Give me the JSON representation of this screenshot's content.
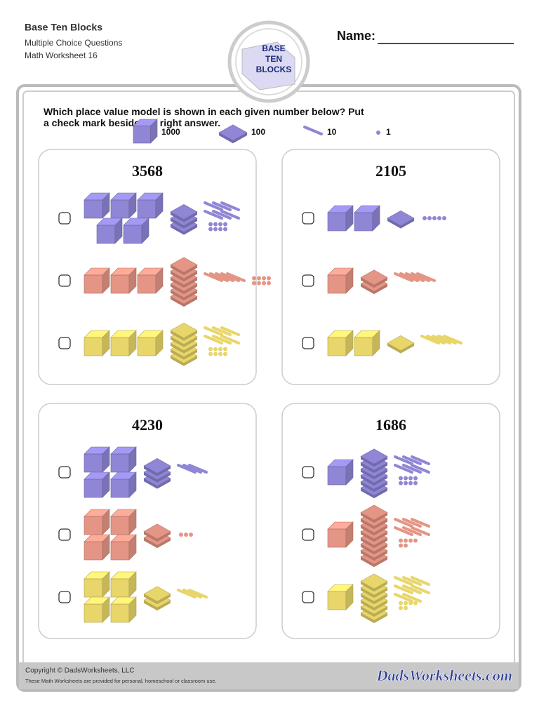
{
  "header": {
    "title": "Base Ten Blocks",
    "subtitle": "Multiple Choice Questions",
    "worksheet": "Math Worksheet 16",
    "name_label": "Name:"
  },
  "logo": [
    "BASE",
    "TEN",
    "BLOCKS"
  ],
  "instructions": "Which place value model is shown in each given number below?  Put a check mark beside the right answer.",
  "legend": [
    {
      "label": "1000"
    },
    {
      "label": "100"
    },
    {
      "label": "10"
    },
    {
      "label": "1"
    }
  ],
  "problems": [
    {
      "number": "3568",
      "options": [
        [
          5,
          3,
          6,
          8
        ],
        [
          3,
          6,
          5,
          8
        ],
        [
          3,
          5,
          6,
          8
        ]
      ]
    },
    {
      "number": "2105",
      "options": [
        [
          2,
          1,
          0,
          5
        ],
        [
          1,
          2,
          5,
          0
        ],
        [
          2,
          1,
          5,
          0
        ]
      ]
    },
    {
      "number": "4230",
      "options": [
        [
          4,
          3,
          3,
          0
        ],
        [
          4,
          2,
          0,
          3
        ],
        [
          4,
          2,
          3,
          0
        ]
      ]
    },
    {
      "number": "1686",
      "options": [
        [
          1,
          6,
          6,
          8
        ],
        [
          1,
          8,
          6,
          6
        ],
        [
          1,
          6,
          8,
          6
        ]
      ]
    }
  ],
  "footer": {
    "copyright": "Copyright © DadsWorksheets, LLC",
    "note": "These Math Worksheets are provided for personal, homeschool or classroom use.",
    "brand": "DadsWorksheets.com"
  }
}
